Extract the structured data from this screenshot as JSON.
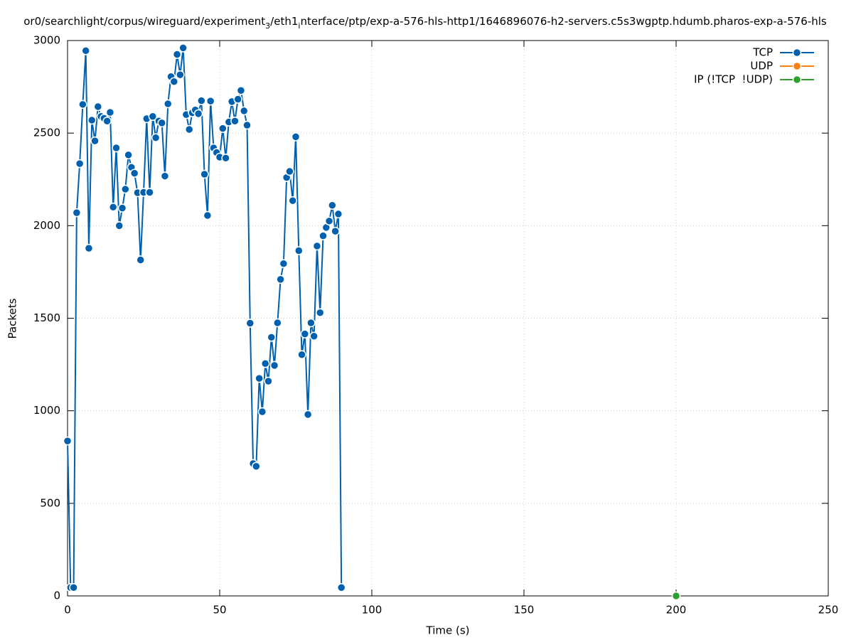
{
  "chart_data": {
    "type": "line",
    "title": [
      "or0/searchlight/corpus/wireguard/experiment",
      "3",
      "/eth1",
      "i",
      "nterface/ptp/exp-a-576-hls-http1/1646896076-h2-servers.c5s3wgptp.hdumb.pharos-exp-a-576-hls"
    ],
    "x_label": "Time (s)",
    "y_label": "Packets",
    "xlim": [
      0,
      250
    ],
    "xticks": [
      0,
      50,
      100,
      150,
      200,
      250
    ],
    "ylim": [
      0,
      3000
    ],
    "yticks": [
      0,
      500,
      1000,
      1500,
      2000,
      2500,
      3000
    ],
    "grid": true,
    "legend": "top-right",
    "series": [
      {
        "name": "TCP",
        "color": "#0060ad",
        "x": [
          0,
          1,
          2,
          3,
          4,
          5,
          6,
          7,
          8,
          9,
          10,
          11,
          12,
          13,
          14,
          15,
          16,
          17,
          18,
          19,
          20,
          21,
          22,
          23,
          24,
          25,
          26,
          27,
          28,
          29,
          30,
          31,
          32,
          33,
          34,
          35,
          36,
          37,
          38,
          39,
          40,
          41,
          42,
          43,
          44,
          45,
          46,
          47,
          48,
          49,
          50,
          51,
          52,
          53,
          54,
          55,
          56,
          57,
          58,
          59,
          60,
          61,
          62,
          63,
          64,
          65,
          66,
          67,
          68,
          69,
          70,
          71,
          72,
          73,
          74,
          75,
          76,
          77,
          78,
          79,
          80,
          81,
          82,
          83,
          84,
          85,
          86,
          87,
          88,
          89,
          90
        ],
        "values": [
          837,
          45,
          45,
          2070,
          2335,
          2655,
          2945,
          1878,
          2570,
          2458,
          2643,
          2590,
          2580,
          2565,
          2612,
          2100,
          2420,
          2000,
          2095,
          2197,
          2382,
          2315,
          2283,
          2178,
          1815,
          2180,
          2578,
          2180,
          2590,
          2475,
          2565,
          2555,
          2268,
          2658,
          2805,
          2778,
          2925,
          2815,
          2960,
          2600,
          2520,
          2610,
          2625,
          2605,
          2675,
          2278,
          2055,
          2673,
          2420,
          2395,
          2370,
          2525,
          2365,
          2560,
          2670,
          2565,
          2683,
          2730,
          2620,
          2543,
          1473,
          715,
          700,
          1175,
          995,
          1255,
          1160,
          1397,
          1245,
          1475,
          1710,
          1795,
          2260,
          2293,
          2135,
          2480,
          1865,
          1303,
          1415,
          980,
          1475,
          1403,
          1890,
          1530,
          1945,
          1990,
          2025,
          2110,
          1970,
          2063,
          45
        ]
      },
      {
        "name": "UDP",
        "color": "#ff7f0e",
        "x": [],
        "values": []
      },
      {
        "name": "IP (!TCP  !UDP)",
        "color": "#2ca02c",
        "x": [
          200
        ],
        "values": [
          0
        ]
      }
    ]
  }
}
